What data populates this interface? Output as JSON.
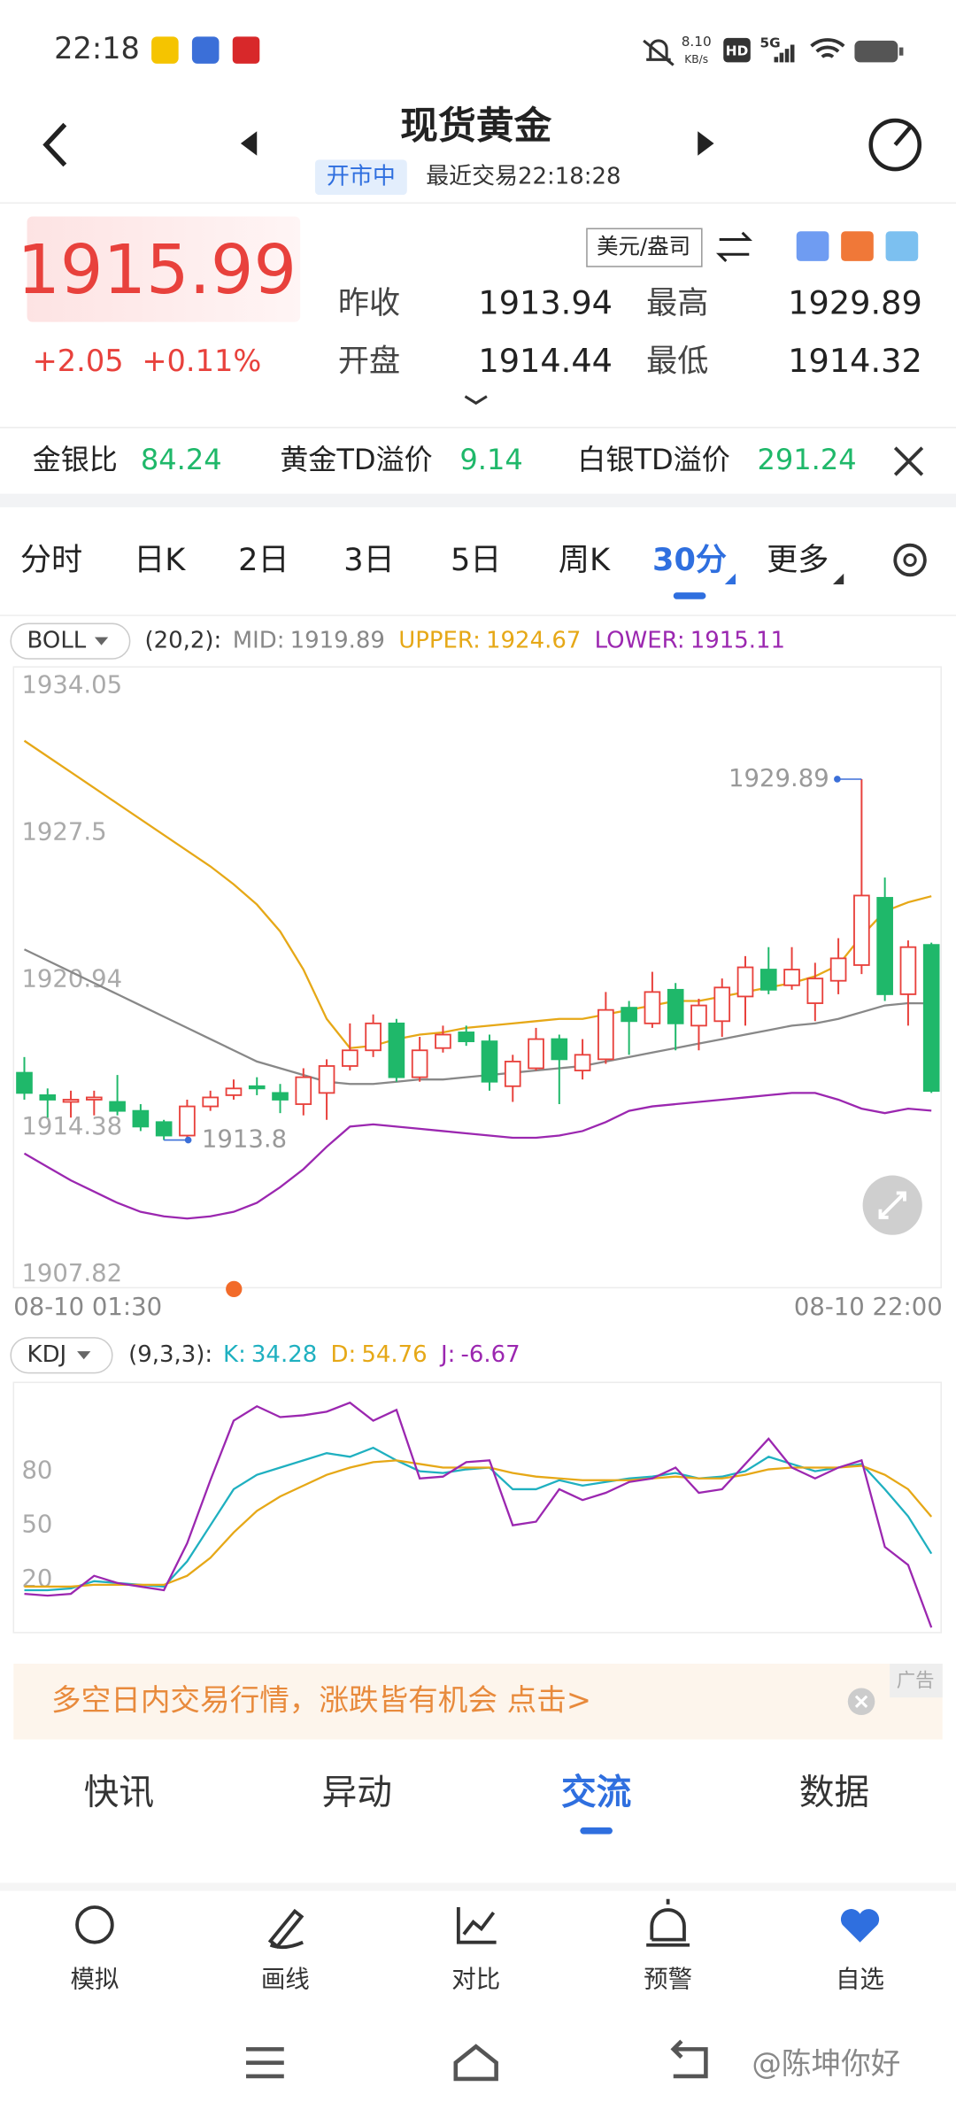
{
  "status_bar": {
    "time": "22:18",
    "speed": "8.10",
    "speed_unit": "KB/s",
    "hd": "HD",
    "network": "5G"
  },
  "header": {
    "title": "现货黄金",
    "status": "开市中",
    "last_trade": "最近交易22:18:28"
  },
  "quote": {
    "price": "1915.99",
    "change": "+2.05",
    "change_pct": "+0.11%",
    "unit": "美元/盎司",
    "stats": [
      {
        "label": "昨收",
        "value": "1913.94"
      },
      {
        "label": "最高",
        "value": "1929.89"
      },
      {
        "label": "开盘",
        "value": "1914.44"
      },
      {
        "label": "最低",
        "value": "1914.32"
      }
    ]
  },
  "ratios": [
    {
      "label": "金银比",
      "value": "84.24"
    },
    {
      "label": "黄金TD溢价",
      "value": "9.14"
    },
    {
      "label": "白银TD溢价",
      "value": "291.24"
    }
  ],
  "tabs": {
    "items": [
      "分时",
      "日K",
      "2日",
      "3日",
      "5日",
      "周K",
      "30分",
      "更多"
    ],
    "active": 6
  },
  "chart_data": [
    {
      "type": "candlestick",
      "indicator": "BOLL",
      "params": "(20,2):",
      "categories": [
        "08-10 01:30",
        null,
        null,
        null,
        null,
        null,
        null,
        null,
        null,
        null,
        null,
        null,
        null,
        null,
        null,
        null,
        null,
        null,
        null,
        null,
        null,
        null,
        null,
        null,
        null,
        null,
        null,
        null,
        null,
        null,
        null,
        null,
        null,
        null,
        null,
        null,
        null,
        null,
        null,
        "08-10 22:00"
      ],
      "open": [
        1916.8,
        1915.8,
        1915.5,
        1915.6,
        1915.5,
        1915.1,
        1914.6,
        1914.0,
        1915.3,
        1915.8,
        1916.2,
        1915.9,
        1915.4,
        1915.9,
        1917.1,
        1917.8,
        1919.0,
        1916.6,
        1917.9,
        1918.6,
        1918.2,
        1916.2,
        1917.0,
        1918.3,
        1916.9,
        1917.4,
        1919.7,
        1919.0,
        1920.5,
        1918.9,
        1919.1,
        1920.2,
        1921.4,
        1920.7,
        1919.9,
        1920.9,
        1921.6,
        1924.6,
        1920.3,
        1922.5
      ],
      "high": [
        1917.5,
        1916.1,
        1916.0,
        1916.0,
        1916.7,
        1915.4,
        1914.7,
        1915.6,
        1916.0,
        1916.5,
        1916.6,
        1916.3,
        1917.0,
        1917.4,
        1919.0,
        1919.4,
        1919.2,
        1918.4,
        1918.9,
        1918.9,
        1918.5,
        1917.6,
        1918.8,
        1918.5,
        1918.3,
        1920.4,
        1920.0,
        1921.3,
        1920.8,
        1920.1,
        1921.0,
        1922.0,
        1922.4,
        1922.4,
        1921.7,
        1922.8,
        1929.89,
        1925.5,
        1922.7,
        1922.6
      ],
      "low": [
        1915.6,
        1914.8,
        1914.8,
        1914.9,
        1914.9,
        1914.2,
        1913.8,
        1913.9,
        1915.1,
        1915.6,
        1915.8,
        1915.0,
        1914.9,
        1914.7,
        1916.9,
        1917.5,
        1916.4,
        1916.4,
        1917.7,
        1918.0,
        1916.0,
        1915.5,
        1916.9,
        1915.4,
        1916.5,
        1917.2,
        1917.6,
        1918.8,
        1917.8,
        1917.8,
        1918.4,
        1918.9,
        1920.3,
        1920.5,
        1919.1,
        1920.3,
        1921.2,
        1920.0,
        1918.9,
        1915.9
      ],
      "close": [
        1915.9,
        1915.6,
        1915.6,
        1915.7,
        1915.1,
        1914.4,
        1914.0,
        1915.3,
        1915.7,
        1916.1,
        1916.1,
        1915.6,
        1916.6,
        1917.1,
        1917.8,
        1919.0,
        1916.6,
        1917.8,
        1918.5,
        1918.2,
        1916.4,
        1917.3,
        1918.3,
        1917.4,
        1917.6,
        1919.6,
        1919.1,
        1920.4,
        1919.0,
        1919.8,
        1920.6,
        1921.5,
        1920.5,
        1921.4,
        1921.0,
        1921.9,
        1924.7,
        1920.3,
        1922.4,
        1915.99
      ],
      "up_color": "#e8413c",
      "down_color": "#1fb86a",
      "series": [
        {
          "name": "MID:",
          "color": "#888888",
          "values": [
            1922.3,
            1921.8,
            1921.3,
            1920.8,
            1920.3,
            1919.8,
            1919.3,
            1918.8,
            1918.3,
            1917.8,
            1917.3,
            1917.0,
            1916.7,
            1916.4,
            1916.3,
            1916.3,
            1916.4,
            1916.5,
            1916.5,
            1916.6,
            1916.7,
            1916.8,
            1916.9,
            1917.0,
            1917.1,
            1917.3,
            1917.5,
            1917.7,
            1917.9,
            1918.1,
            1918.3,
            1918.5,
            1918.7,
            1918.9,
            1919.0,
            1919.2,
            1919.5,
            1919.8,
            1919.9,
            1919.89
          ]
        },
        {
          "name": "UPPER:",
          "color": "#e6a817",
          "values": [
            1931.6,
            1930.9,
            1930.2,
            1929.5,
            1928.8,
            1928.1,
            1927.4,
            1926.7,
            1926.0,
            1925.2,
            1924.3,
            1923.1,
            1921.4,
            1919.2,
            1917.9,
            1918.0,
            1918.3,
            1918.5,
            1918.6,
            1918.8,
            1918.9,
            1919.0,
            1919.1,
            1919.2,
            1919.2,
            1919.4,
            1919.6,
            1919.8,
            1920.0,
            1920.0,
            1920.2,
            1920.4,
            1920.6,
            1920.8,
            1921.1,
            1921.6,
            1922.9,
            1924.0,
            1924.4,
            1924.67
          ]
        },
        {
          "name": "LOWER:",
          "color": "#9b27b0",
          "values": [
            1913.2,
            1912.6,
            1912.0,
            1911.5,
            1911.0,
            1910.6,
            1910.4,
            1910.3,
            1910.4,
            1910.6,
            1911.0,
            1911.7,
            1912.5,
            1913.5,
            1914.4,
            1914.5,
            1914.4,
            1914.3,
            1914.2,
            1914.1,
            1914.0,
            1913.9,
            1913.9,
            1914.0,
            1914.2,
            1914.6,
            1915.1,
            1915.3,
            1915.4,
            1915.5,
            1915.6,
            1915.7,
            1915.8,
            1915.9,
            1915.9,
            1915.6,
            1915.2,
            1915.0,
            1915.2,
            1915.11
          ]
        }
      ],
      "ylim": [
        1907.82,
        1934.05
      ],
      "yticks": [
        1907.82,
        1914.38,
        1920.94,
        1927.5,
        1934.05
      ],
      "grid": false
    },
    {
      "type": "line",
      "indicator": "KDJ",
      "params": "(9,3,3):",
      "series": [
        {
          "name": "K:",
          "color": "#1fb0c0",
          "values": [
            14,
            14,
            15,
            19,
            18,
            17,
            16,
            30,
            50,
            70,
            78,
            82,
            86,
            90,
            88,
            93,
            86,
            80,
            79,
            81,
            82,
            70,
            70,
            75,
            72,
            74,
            76,
            77,
            79,
            76,
            77,
            80,
            88,
            84,
            80,
            82,
            84,
            70,
            55,
            34.28
          ]
        },
        {
          "name": "D:",
          "color": "#e6a817",
          "values": [
            16,
            16,
            16,
            17,
            17,
            17,
            17,
            22,
            32,
            46,
            58,
            66,
            72,
            78,
            82,
            85,
            86,
            84,
            82,
            82,
            82,
            79,
            77,
            76,
            75,
            75,
            75,
            76,
            77,
            76,
            76,
            78,
            81,
            82,
            82,
            82,
            83,
            78,
            70,
            54.76
          ]
        },
        {
          "name": "J:",
          "color": "#9b27b0",
          "values": [
            12,
            11,
            12,
            22,
            18,
            16,
            14,
            40,
            75,
            108,
            116,
            110,
            111,
            113,
            118,
            108,
            114,
            76,
            77,
            85,
            86,
            50,
            52,
            70,
            64,
            68,
            74,
            76,
            82,
            68,
            70,
            84,
            98,
            82,
            76,
            82,
            86,
            38,
            28,
            -6.67
          ]
        }
      ],
      "ylim": [
        -8,
        127
      ],
      "yticks": [
        20,
        50,
        80
      ],
      "grid": false
    }
  ],
  "ad": {
    "text": "多空日内交易行情，涨跌皆有机会 点击>",
    "tag": "广告"
  },
  "bottom_tabs": {
    "items": [
      "快讯",
      "异动",
      "交流",
      "数据"
    ],
    "active": 2
  },
  "toolbar": [
    "模拟",
    "画线",
    "对比",
    "预警",
    "自选"
  ],
  "watermark": "@陈坤你好"
}
